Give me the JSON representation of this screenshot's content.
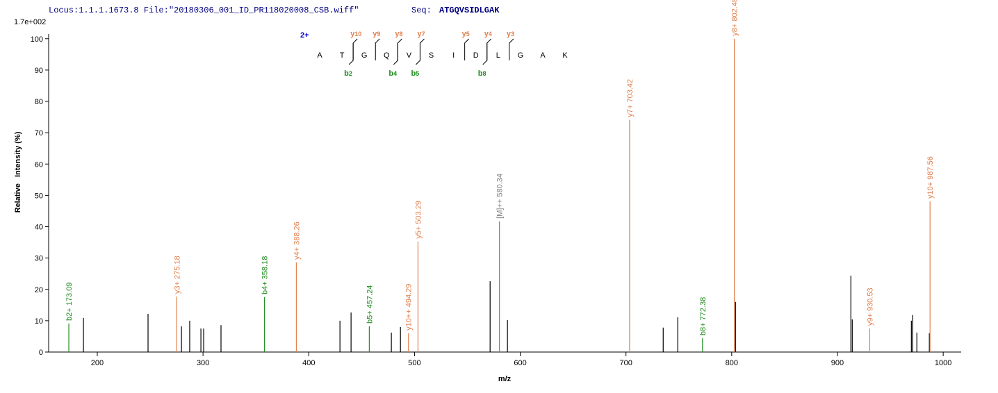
{
  "header": {
    "locus": "Locus:1.1.1.1673.8 File:\"20180306_001_ID_PR118020008_CSB.wiff\"",
    "seq_label": "Seq:",
    "seq": "ATGQVSIDLGAK"
  },
  "chart_data": {
    "type": "stem",
    "y_max_label": "1.7e+002",
    "xlabel": "m/z",
    "ylabel": "Relative   Intensity (%)",
    "xlim": [
      154,
      1017
    ],
    "ylim": [
      0,
      101.5
    ],
    "xticks": [
      200,
      300,
      400,
      500,
      600,
      700,
      800,
      900,
      1000
    ],
    "yticks": [
      0,
      10,
      20,
      30,
      40,
      50,
      60,
      70,
      80,
      90,
      100
    ],
    "sequence_annotation": {
      "charge": "2+",
      "residues": [
        "A",
        "T",
        "G",
        "Q",
        "V",
        "S",
        "I",
        "D",
        "L",
        "G",
        "A",
        "K"
      ],
      "y_ions": [
        {
          "ion": "y",
          "n": 10
        },
        {
          "ion": "y",
          "n": 9
        },
        {
          "ion": "y",
          "n": 8
        },
        {
          "ion": "y",
          "n": 7
        },
        {
          "ion": "y",
          "n": 5
        },
        {
          "ion": "y",
          "n": 4
        },
        {
          "ion": "y",
          "n": 3
        }
      ],
      "b_ions": [
        {
          "ion": "b",
          "n": 2
        },
        {
          "ion": "b",
          "n": 4
        },
        {
          "ion": "b",
          "n": 5
        },
        {
          "ion": "b",
          "n": 8
        }
      ]
    },
    "series": [
      {
        "color": "#000000",
        "x": [
          186.9,
          248.0,
          279.6,
          287.4,
          298.0,
          300.6,
          317.0,
          429.5,
          440.0,
          478.1,
          486.7,
          571.5,
          587.9,
          735.2,
          749.0,
          803.6,
          912.7,
          914.0,
          969.9,
          971.2,
          975.1,
          986.9
        ],
        "values": [
          10.9,
          12.2,
          8.2,
          10.0,
          7.5,
          7.5,
          8.6,
          10.0,
          12.6,
          6.2,
          8.0,
          22.6,
          10.2,
          7.8,
          11.1,
          16.0,
          24.4,
          10.4,
          10.0,
          11.8,
          6.2,
          6.0
        ]
      },
      {
        "color": "#1e8c1e",
        "x": [
          173.09,
          358.18,
          457.24,
          772.38
        ],
        "values": [
          9.1,
          17.5,
          8.2,
          4.4
        ],
        "labels": [
          "b2+ 173.09",
          "b4+ 358.18",
          "b5+ 457.24",
          "b8+ 772.38"
        ]
      },
      {
        "color": "#e0814f",
        "x": [
          275.18,
          388.26,
          494.29,
          503.29,
          703.42,
          802.48,
          930.53,
          987.56
        ],
        "values": [
          17.7,
          28.6,
          6.0,
          35.3,
          74.1,
          100,
          7.5,
          48.1
        ],
        "labels": [
          "y3+ 275.18",
          "y4+ 388.26",
          "y10++ 494.29",
          "y5+ 503.29",
          "y7+ 703.42",
          "y8+ 802.48",
          "y9+ 930.53",
          "y10+ 987.56"
        ]
      },
      {
        "color": "#808080",
        "x": [
          580.34
        ],
        "values": [
          41.7
        ],
        "labels": [
          "[M]++ 580.34"
        ]
      }
    ]
  }
}
